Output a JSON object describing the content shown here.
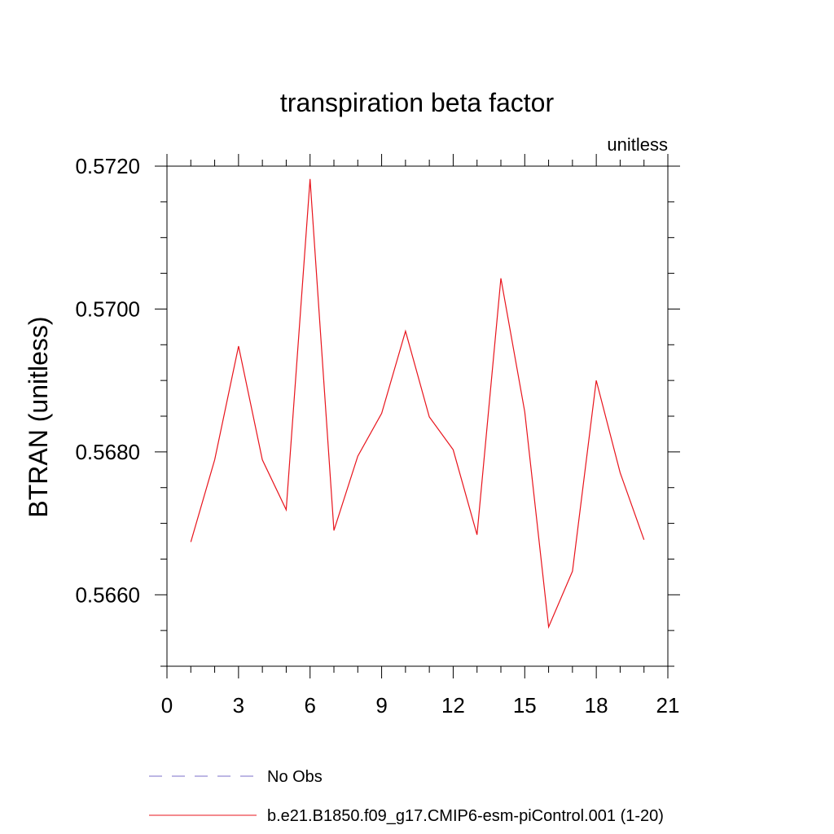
{
  "chart_data": {
    "type": "line",
    "title": "transpiration beta factor",
    "units_label": "unitless",
    "ylabel": "BTRAN  (unitless)",
    "xlabel": "",
    "xlim": [
      0,
      21
    ],
    "ylim": [
      0.565,
      0.572
    ],
    "xticks": [
      {
        "value": 0,
        "label": "0"
      },
      {
        "value": 3,
        "label": "3"
      },
      {
        "value": 6,
        "label": "6"
      },
      {
        "value": 9,
        "label": "9"
      },
      {
        "value": 12,
        "label": "12"
      },
      {
        "value": 15,
        "label": "15"
      },
      {
        "value": 18,
        "label": "18"
      },
      {
        "value": 21,
        "label": "21"
      }
    ],
    "yticks": [
      {
        "value": 0.566,
        "label": "0.5660"
      },
      {
        "value": 0.568,
        "label": "0.5680"
      },
      {
        "value": 0.57,
        "label": "0.5700"
      },
      {
        "value": 0.572,
        "label": "0.5720"
      }
    ],
    "x": [
      1,
      2,
      3,
      4,
      5,
      6,
      7,
      8,
      9,
      10,
      11,
      12,
      13,
      14,
      15,
      16,
      17,
      18,
      19,
      20
    ],
    "series": [
      {
        "name": "b.e21.B1850.f09_g17.CMIP6-esm-piControl.001 (1-20)",
        "color": "#e8141c",
        "style": "solid",
        "values": [
          0.56674,
          0.56789,
          0.56948,
          0.56789,
          0.56719,
          0.57182,
          0.5669,
          0.56794,
          0.56854,
          0.56969,
          0.56849,
          0.56803,
          0.56684,
          0.57043,
          0.56856,
          0.56555,
          0.56633,
          0.569,
          0.56771,
          0.56677
        ]
      }
    ],
    "legend": [
      {
        "name": "No Obs",
        "color": "#7b6fc9",
        "style": "dashed"
      },
      {
        "name": "b.e21.B1850.f09_g17.CMIP6-esm-piControl.001 (1-20)",
        "color": "#e8141c",
        "style": "solid"
      }
    ],
    "legend_position": "bottom",
    "grid": false
  }
}
